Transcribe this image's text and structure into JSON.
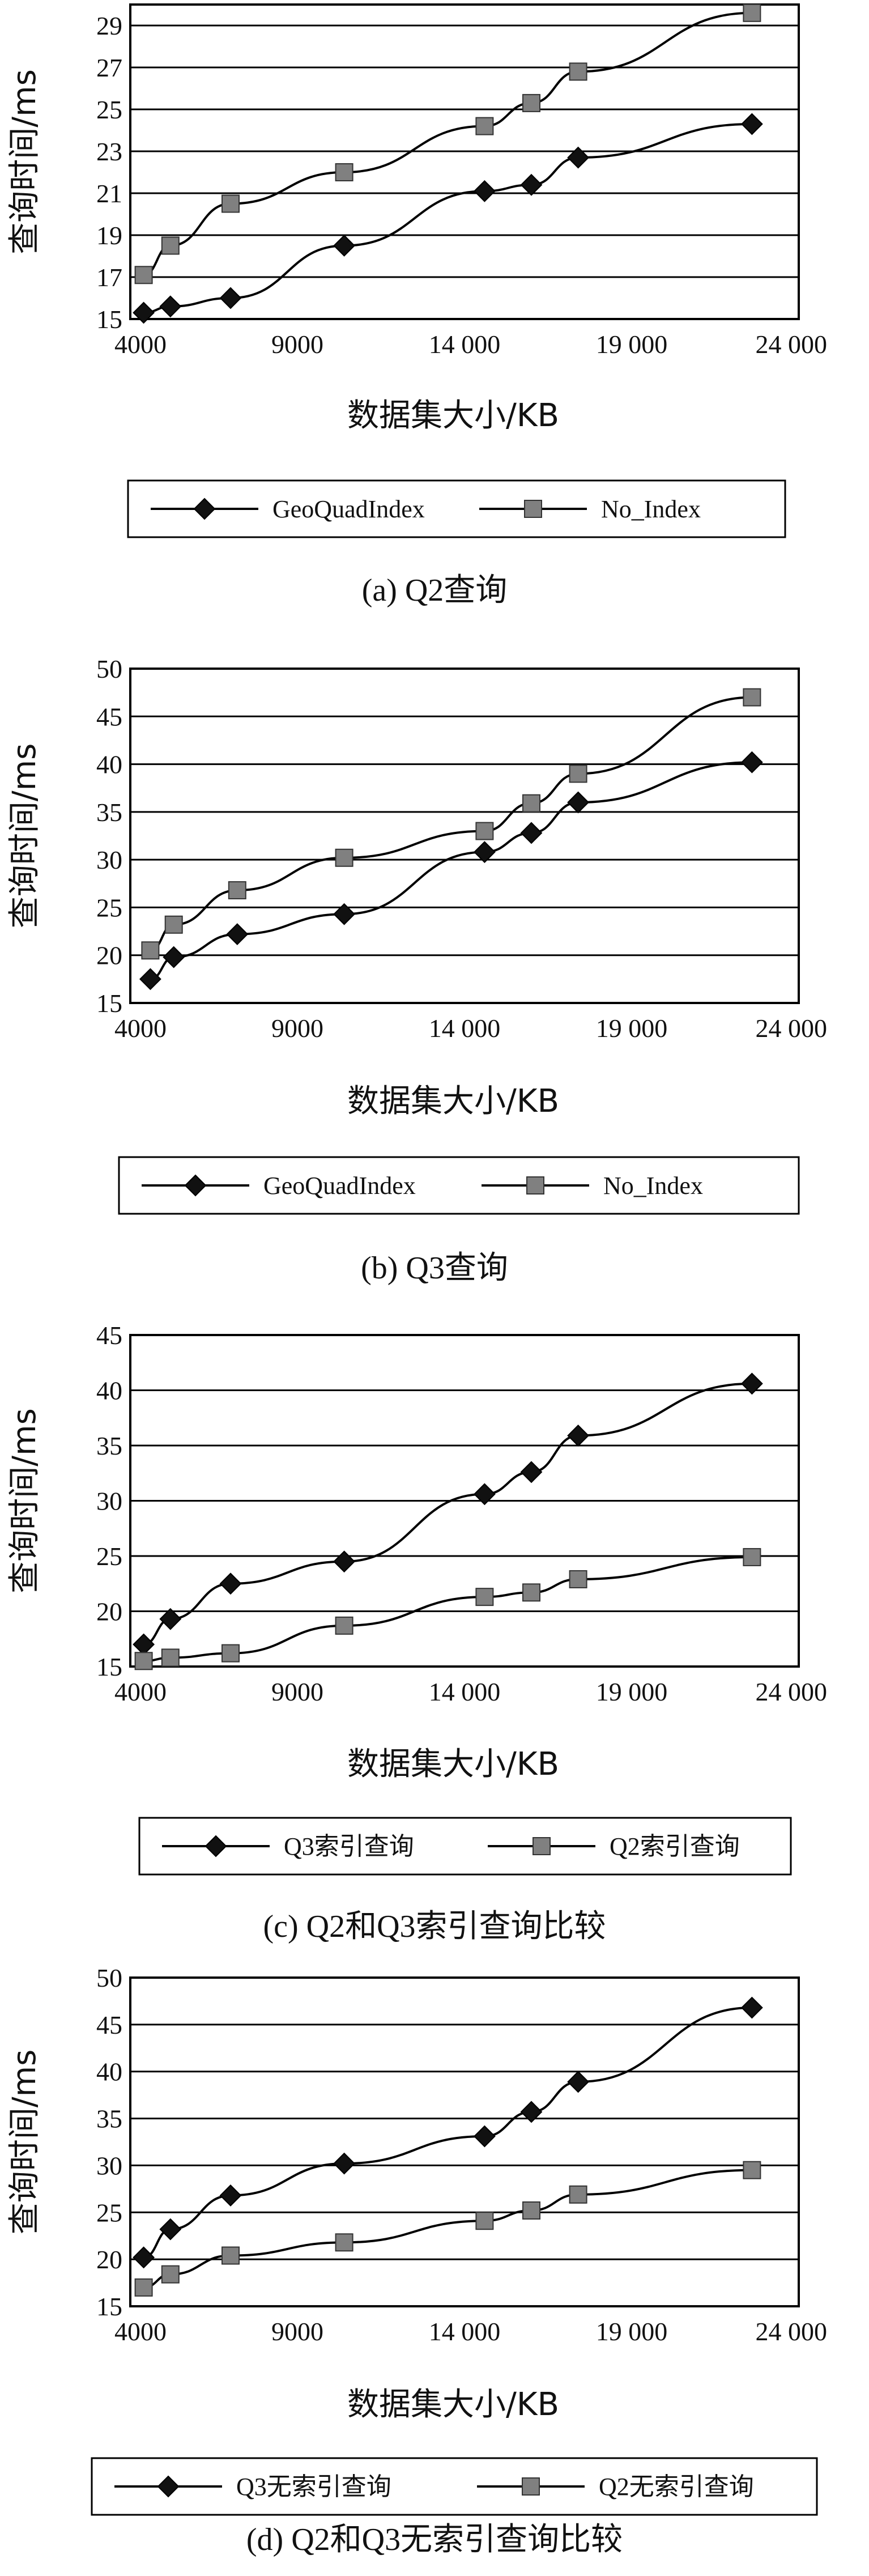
{
  "chart_data": [
    {
      "type": "line",
      "caption": "(a) Q2查询",
      "xlabel": "数据集大小/KB",
      "ylabel": "查询时间/ms",
      "xlim": [
        4000,
        24000
      ],
      "ylim": [
        15,
        30
      ],
      "xticks": [
        4000,
        9000,
        14000,
        19000,
        24000
      ],
      "xtick_labels": [
        "4000",
        "9000",
        "14 000",
        "19 000",
        "24 000"
      ],
      "yticks": [
        15,
        17,
        19,
        21,
        23,
        25,
        27,
        29
      ],
      "ytick_labels": [
        "15",
        "17",
        "19",
        "21",
        "23",
        "25",
        "27",
        "29"
      ],
      "grid": true,
      "legend_position": "bottom",
      "series": [
        {
          "name": "GeoQuadIndex",
          "marker": "diamond",
          "color": "#111111",
          "x": [
            4400,
            5200,
            7000,
            10400,
            14600,
            16000,
            17400,
            22600
          ],
          "y": [
            15.3,
            15.6,
            16.0,
            18.5,
            21.1,
            21.4,
            22.7,
            24.3
          ]
        },
        {
          "name": "No_Index",
          "marker": "square",
          "color": "#808080",
          "x": [
            4400,
            5200,
            7000,
            10400,
            14600,
            16000,
            17400,
            22600
          ],
          "y": [
            17.1,
            18.5,
            20.5,
            22.0,
            24.2,
            25.3,
            26.8,
            29.6
          ]
        }
      ]
    },
    {
      "type": "line",
      "caption": "(b) Q3查询",
      "xlabel": "数据集大小/KB",
      "ylabel": "查询时间/ms",
      "xlim": [
        4000,
        24000
      ],
      "ylim": [
        15,
        50
      ],
      "xticks": [
        4000,
        9000,
        14000,
        19000,
        24000
      ],
      "xtick_labels": [
        "4000",
        "9000",
        "14 000",
        "19 000",
        "24 000"
      ],
      "yticks": [
        15,
        20,
        25,
        30,
        35,
        40,
        45,
        50
      ],
      "ytick_labels": [
        "15",
        "20",
        "25",
        "30",
        "35",
        "40",
        "45",
        "50"
      ],
      "grid": true,
      "legend_position": "bottom",
      "series": [
        {
          "name": "GeoQuadIndex",
          "marker": "diamond",
          "color": "#111111",
          "x": [
            4600,
            5300,
            7200,
            10400,
            14600,
            16000,
            17400,
            22600
          ],
          "y": [
            17.5,
            19.8,
            22.2,
            24.3,
            30.8,
            32.8,
            36.0,
            40.2
          ]
        },
        {
          "name": "No_Index",
          "marker": "square",
          "color": "#808080",
          "x": [
            4600,
            5300,
            7200,
            10400,
            14600,
            16000,
            17400,
            22600
          ],
          "y": [
            20.5,
            23.2,
            26.8,
            30.2,
            33.0,
            35.9,
            39.0,
            47.0
          ]
        }
      ]
    },
    {
      "type": "line",
      "caption": "(c) Q2和Q3索引查询比较",
      "xlabel": "数据集大小/KB",
      "ylabel": "查询时间/ms",
      "xlim": [
        4000,
        24000
      ],
      "ylim": [
        15,
        45
      ],
      "xticks": [
        4000,
        9000,
        14000,
        19000,
        24000
      ],
      "xtick_labels": [
        "4000",
        "9000",
        "14 000",
        "19 000",
        "24 000"
      ],
      "yticks": [
        15,
        20,
        25,
        30,
        35,
        40,
        45
      ],
      "ytick_labels": [
        "15",
        "20",
        "25",
        "30",
        "35",
        "40",
        "45"
      ],
      "grid": true,
      "legend_position": "bottom",
      "series": [
        {
          "name": "Q3索引查询",
          "marker": "diamond",
          "color": "#111111",
          "x": [
            4400,
            5200,
            7000,
            10400,
            14600,
            16000,
            17400,
            22600
          ],
          "y": [
            17.0,
            19.3,
            22.5,
            24.5,
            30.6,
            32.6,
            35.9,
            40.6
          ]
        },
        {
          "name": "Q2索引查询",
          "marker": "square",
          "color": "#808080",
          "x": [
            4400,
            5200,
            7000,
            10400,
            14600,
            16000,
            17400,
            22600
          ],
          "y": [
            15.5,
            15.8,
            16.2,
            18.7,
            21.3,
            21.7,
            22.9,
            24.9
          ]
        }
      ]
    },
    {
      "type": "line",
      "caption": "(d) Q2和Q3无索引查询比较",
      "xlabel": "数据集大小/KB",
      "ylabel": "查询时间/ms",
      "xlim": [
        4000,
        24000
      ],
      "ylim": [
        15,
        50
      ],
      "xticks": [
        4000,
        9000,
        14000,
        19000,
        24000
      ],
      "xtick_labels": [
        "4000",
        "9000",
        "14 000",
        "19 000",
        "24 000"
      ],
      "yticks": [
        15,
        20,
        25,
        30,
        35,
        40,
        45,
        50
      ],
      "ytick_labels": [
        "15",
        "20",
        "25",
        "30",
        "35",
        "40",
        "45",
        "50"
      ],
      "grid": true,
      "legend_position": "bottom",
      "series": [
        {
          "name": "Q3无索引查询",
          "marker": "diamond",
          "color": "#111111",
          "x": [
            4400,
            5200,
            7000,
            10400,
            14600,
            16000,
            17400,
            22600
          ],
          "y": [
            20.2,
            23.2,
            26.8,
            30.2,
            33.1,
            35.7,
            38.9,
            46.8
          ]
        },
        {
          "name": "Q2无索引查询",
          "marker": "square",
          "color": "#808080",
          "x": [
            4400,
            5200,
            7000,
            10400,
            14600,
            16000,
            17400,
            22600
          ],
          "y": [
            17.0,
            18.4,
            20.4,
            21.8,
            24.1,
            25.2,
            26.9,
            29.5
          ]
        }
      ]
    }
  ]
}
